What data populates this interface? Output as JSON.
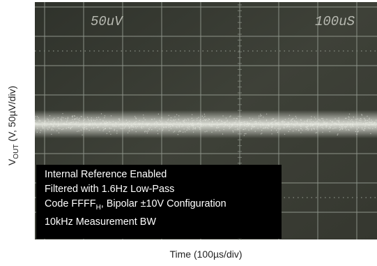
{
  "chart_data": {
    "type": "line",
    "title": "",
    "ylabel": {
      "main": "V",
      "sub": "OUT",
      "rest": " (V, 50µV/div)"
    },
    "xlabel": "Time (100µs/div)",
    "scope_labels": {
      "vertical_scale": "50uV",
      "time_scale": "100uS"
    },
    "grid": true,
    "legend_placement": "bottom-left",
    "annotation": [
      {
        "text": "Internal Reference Enabled"
      },
      {
        "text": "Filtered with 1.6Hz Low-Pass"
      },
      {
        "text": "Code FFFF",
        "sub": "H",
        "rest": ", Bipolar ±10V Configuration"
      },
      {
        "text": "10kHz Measurement BW"
      }
    ],
    "series": [
      {
        "x_div": [
          0,
          10
        ],
        "level_div": 0.0,
        "noise_peak_to_peak_div": 0.4
      }
    ]
  },
  "colors": {
    "screen": "#3b3d35",
    "grid": "#8e948a",
    "trace": "#d8dad2",
    "label_box": "#000000"
  }
}
